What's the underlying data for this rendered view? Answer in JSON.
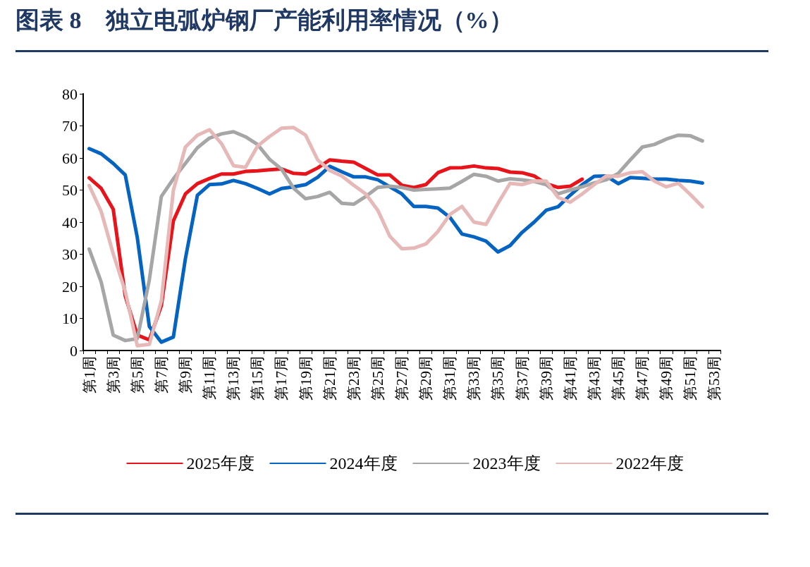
{
  "chart_data": {
    "type": "line",
    "title": "图表 8　独立电弧炉钢厂产能利用率情况（%）",
    "categories": [
      "第1周",
      null,
      "第3周",
      null,
      "第5周",
      null,
      "第7周",
      null,
      "第9周",
      null,
      "第11周",
      null,
      "第13周",
      null,
      "第15周",
      null,
      "第17周",
      null,
      "第19周",
      null,
      "第21周",
      null,
      "第23周",
      null,
      "第25周",
      null,
      "第27周",
      null,
      "第29周",
      null,
      "第31周",
      null,
      "第33周",
      null,
      "第35周",
      null,
      "第37周",
      null,
      "第39周",
      null,
      "第41周",
      null,
      "第43周",
      null,
      "第45周",
      null,
      "第47周",
      null,
      "第49周",
      null,
      "第51周",
      null,
      "第53周"
    ],
    "series": [
      {
        "name": "2025年度",
        "color": "#e8141c",
        "values": [
          53.8,
          50.5,
          44,
          17,
          4.8,
          3.3,
          14,
          40.4,
          48.8,
          52,
          53.6,
          55,
          55,
          55.8,
          56,
          56.3,
          56.6,
          55.2,
          55,
          56.9,
          59.4,
          59,
          58.7,
          56.7,
          54.7,
          54.7,
          51.5,
          50.8,
          51.7,
          55.4,
          56.9,
          57,
          57.5,
          56.9,
          56.7,
          55.6,
          55.4,
          54.4,
          52,
          50.8,
          51.2,
          53.4,
          null,
          null,
          null,
          null,
          null,
          null,
          null,
          null,
          null,
          null,
          null
        ]
      },
      {
        "name": "2024年度",
        "color": "#0563c1",
        "values": [
          62.9,
          61.3,
          58.3,
          54.7,
          35.2,
          7.5,
          2.6,
          4.2,
          28.6,
          48.4,
          51.7,
          51.9,
          53,
          52,
          50.5,
          48.8,
          50.5,
          51,
          51.7,
          54,
          57.4,
          55.7,
          54.1,
          54.1,
          53.2,
          51,
          48.8,
          44.9,
          44.9,
          44.4,
          41.5,
          36.3,
          35.4,
          34.1,
          30.7,
          32.7,
          36.8,
          40,
          43.7,
          44.8,
          48.4,
          51.7,
          54.3,
          54.4,
          52,
          53.9,
          53.7,
          53.4,
          53.4,
          53,
          52.8,
          52.2,
          null
        ]
      },
      {
        "name": "2023年度",
        "color": "#a6a6a6",
        "values": [
          31.6,
          21.3,
          4.8,
          3.1,
          3.7,
          22,
          48,
          53.5,
          58.3,
          63.2,
          66.2,
          67.5,
          68.2,
          66.6,
          64.2,
          59.6,
          56.5,
          50.6,
          47.3,
          48,
          49.3,
          45.9,
          45.6,
          48,
          50.8,
          51.2,
          50.8,
          50,
          50.2,
          50.4,
          50.6,
          52.7,
          54.9,
          54.3,
          52.8,
          53.5,
          53.2,
          52.7,
          51.7,
          48.8,
          50,
          51,
          52.2,
          53.2,
          55.2,
          59.4,
          63.4,
          64.2,
          65.9,
          67.1,
          66.9,
          65.3,
          null
        ]
      },
      {
        "name": "2022年度",
        "color": "#e6b9b8",
        "values": [
          51.4,
          43.3,
          30.1,
          18.4,
          1.5,
          1.9,
          15.5,
          49.9,
          63.4,
          67.1,
          68.8,
          64.5,
          57.6,
          57.1,
          63.7,
          66.7,
          69.3,
          69.5,
          67.1,
          59.4,
          56.1,
          54.4,
          51.5,
          48.8,
          43.7,
          35.6,
          31.7,
          31.9,
          33.2,
          37.1,
          42.4,
          44.9,
          40,
          39.3,
          45.9,
          52.1,
          51.7,
          52.8,
          52.8,
          47.7,
          46.2,
          48.8,
          51.7,
          54.4,
          54.3,
          55.4,
          55.7,
          52.8,
          51,
          52.1,
          48.6,
          44.8,
          null
        ]
      }
    ],
    "ylim": [
      0,
      80
    ],
    "yticks": [
      0,
      10,
      20,
      30,
      40,
      50,
      60,
      70,
      80
    ],
    "grid": false,
    "legend": "bottom",
    "marker": "none",
    "line_style": "solid"
  }
}
